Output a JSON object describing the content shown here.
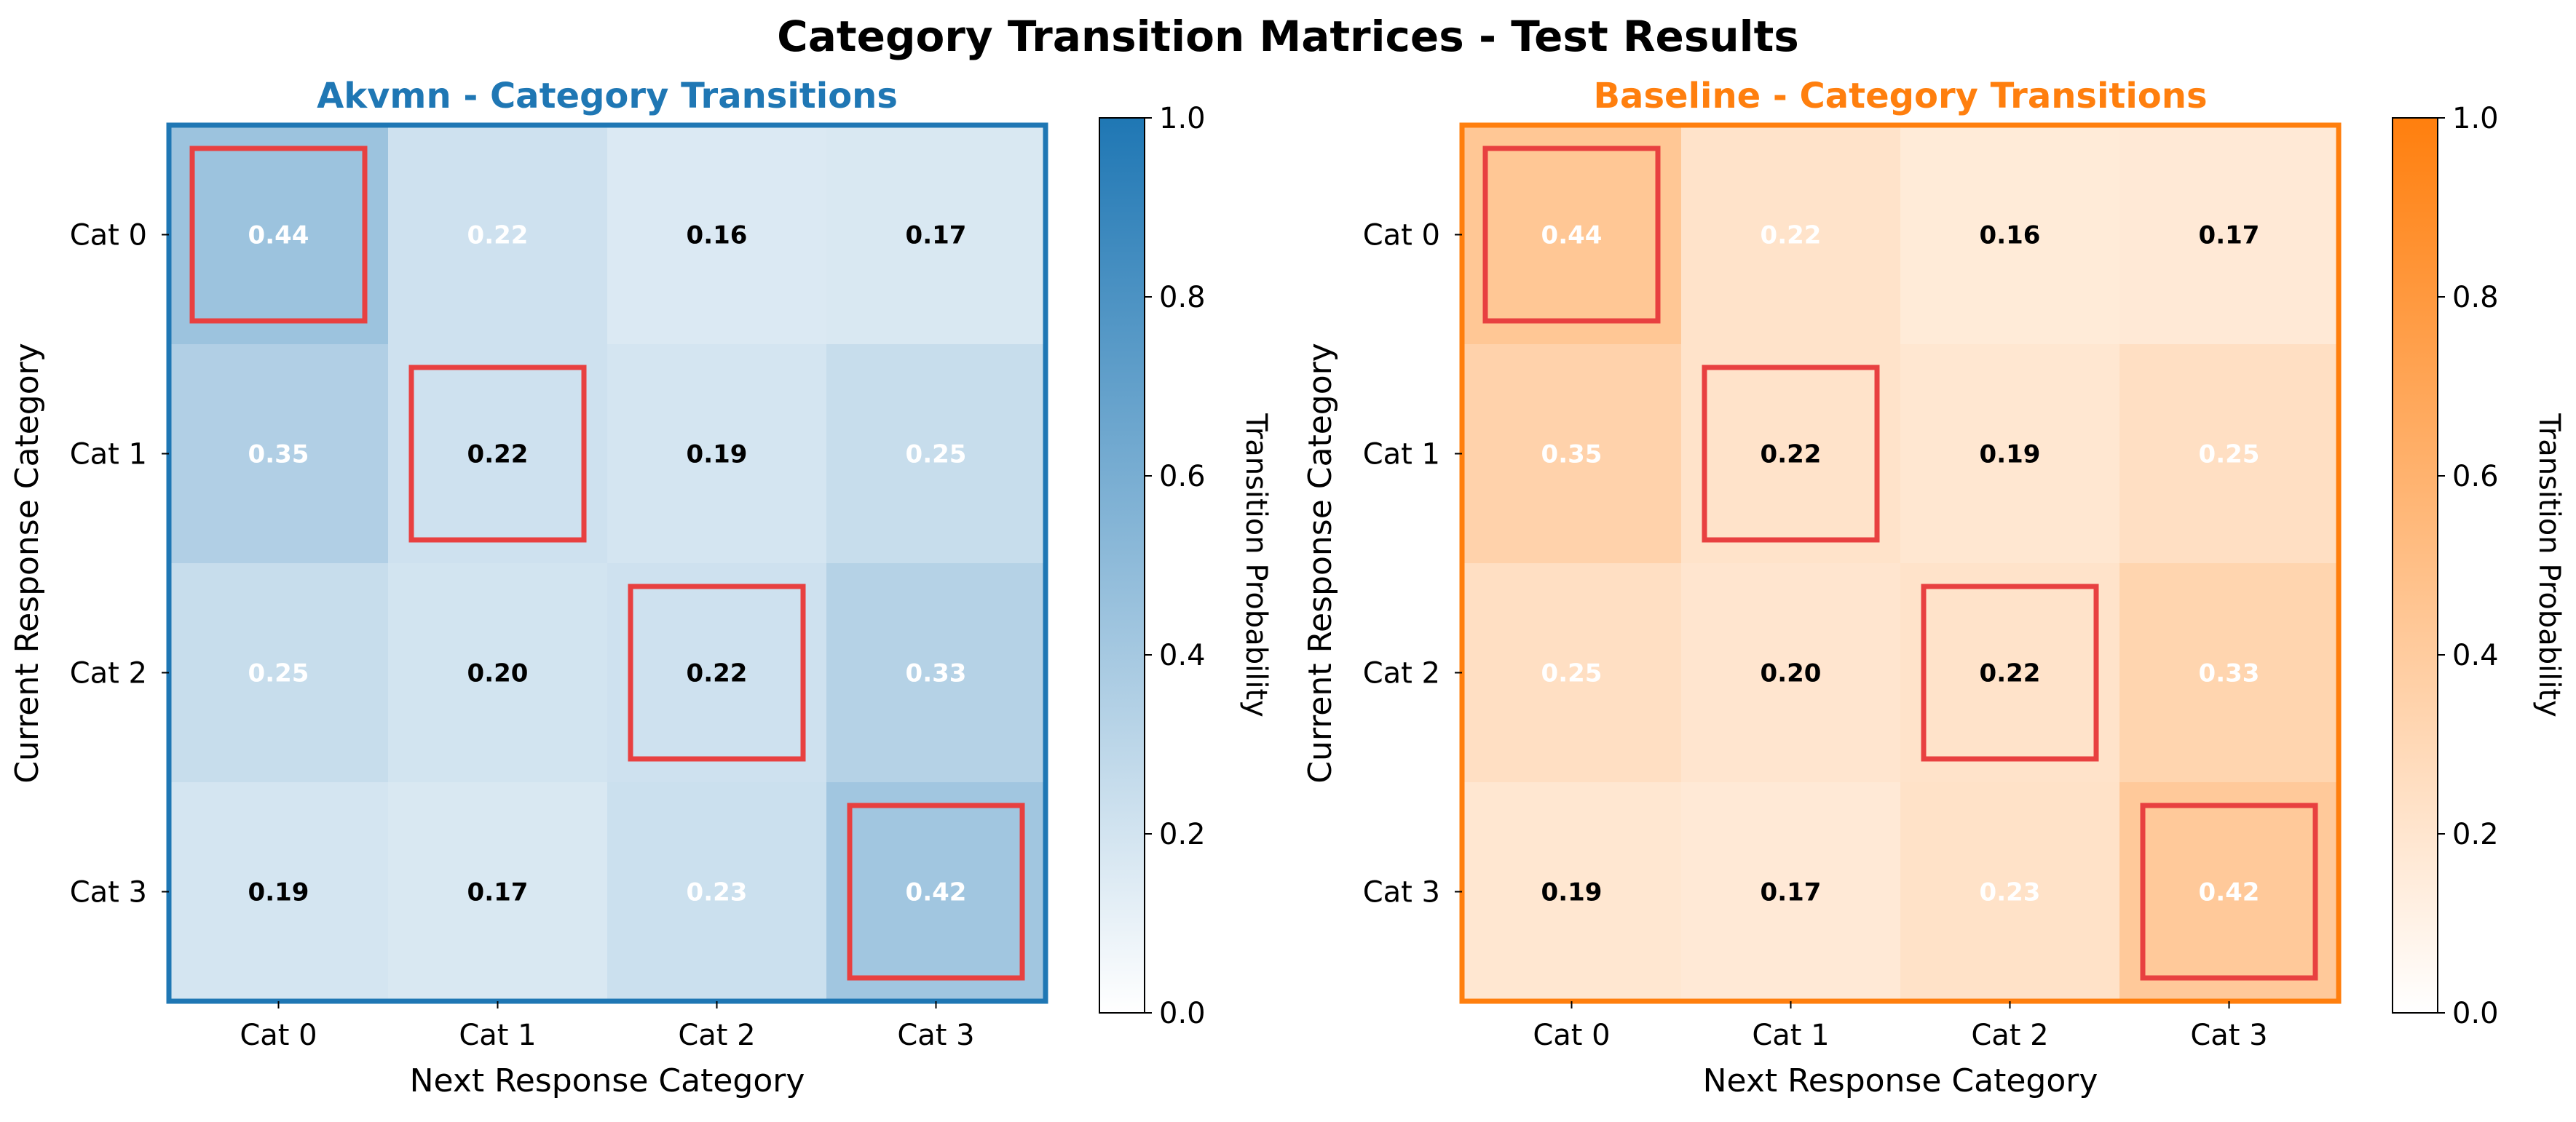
{
  "figure": {
    "suptitle": "Category Transition Matrices - Test Results"
  },
  "chart_data": [
    {
      "type": "heatmap",
      "title": "Akvmn - Category Transitions",
      "title_color": "#1f77b4",
      "frame_color": "#1f77b4",
      "colormap": [
        "#ffffff",
        "#1f77b4"
      ],
      "xlabel": "Next Response Category",
      "ylabel": "Current Response Category",
      "x_categories": [
        "Cat 0",
        "Cat 1",
        "Cat 2",
        "Cat 3"
      ],
      "y_categories": [
        "Cat 0",
        "Cat 1",
        "Cat 2",
        "Cat 3"
      ],
      "values": [
        [
          0.44,
          0.22,
          0.16,
          0.17
        ],
        [
          0.35,
          0.22,
          0.19,
          0.25
        ],
        [
          0.25,
          0.2,
          0.22,
          0.33
        ],
        [
          0.19,
          0.17,
          0.23,
          0.42
        ]
      ],
      "cell_labels": [
        [
          "0.44",
          "0.22",
          "0.16",
          "0.17"
        ],
        [
          "0.35",
          "0.22",
          "0.19",
          "0.25"
        ],
        [
          "0.25",
          "0.20",
          "0.22",
          "0.33"
        ],
        [
          "0.19",
          "0.17",
          "0.23",
          "0.42"
        ]
      ],
      "label_colors": [
        [
          "white",
          "white",
          "black",
          "black"
        ],
        [
          "white",
          "black",
          "black",
          "white"
        ],
        [
          "white",
          "black",
          "black",
          "white"
        ],
        [
          "black",
          "black",
          "white",
          "white"
        ]
      ],
      "diagonal_highlight_color": "#e84040",
      "colorbar": {
        "label": "Transition Probability",
        "range": [
          0.0,
          1.0
        ],
        "ticks": [
          "0.0",
          "0.2",
          "0.4",
          "0.6",
          "0.8",
          "1.0"
        ]
      }
    },
    {
      "type": "heatmap",
      "title": "Baseline - Category Transitions",
      "title_color": "#ff7f0e",
      "frame_color": "#ff7f0e",
      "colormap": [
        "#ffffff",
        "#ff7f0e"
      ],
      "xlabel": "Next Response Category",
      "ylabel": "Current Response Category",
      "x_categories": [
        "Cat 0",
        "Cat 1",
        "Cat 2",
        "Cat 3"
      ],
      "y_categories": [
        "Cat 0",
        "Cat 1",
        "Cat 2",
        "Cat 3"
      ],
      "values": [
        [
          0.44,
          0.22,
          0.16,
          0.17
        ],
        [
          0.35,
          0.22,
          0.19,
          0.25
        ],
        [
          0.25,
          0.2,
          0.22,
          0.33
        ],
        [
          0.19,
          0.17,
          0.23,
          0.42
        ]
      ],
      "cell_labels": [
        [
          "0.44",
          "0.22",
          "0.16",
          "0.17"
        ],
        [
          "0.35",
          "0.22",
          "0.19",
          "0.25"
        ],
        [
          "0.25",
          "0.20",
          "0.22",
          "0.33"
        ],
        [
          "0.19",
          "0.17",
          "0.23",
          "0.42"
        ]
      ],
      "label_colors": [
        [
          "white",
          "white",
          "black",
          "black"
        ],
        [
          "white",
          "black",
          "black",
          "white"
        ],
        [
          "white",
          "black",
          "black",
          "white"
        ],
        [
          "black",
          "black",
          "white",
          "white"
        ]
      ],
      "diagonal_highlight_color": "#e84040",
      "colorbar": {
        "label": "Transition Probability",
        "range": [
          0.0,
          1.0
        ],
        "ticks": [
          "0.0",
          "0.2",
          "0.4",
          "0.6",
          "0.8",
          "1.0"
        ]
      }
    }
  ]
}
